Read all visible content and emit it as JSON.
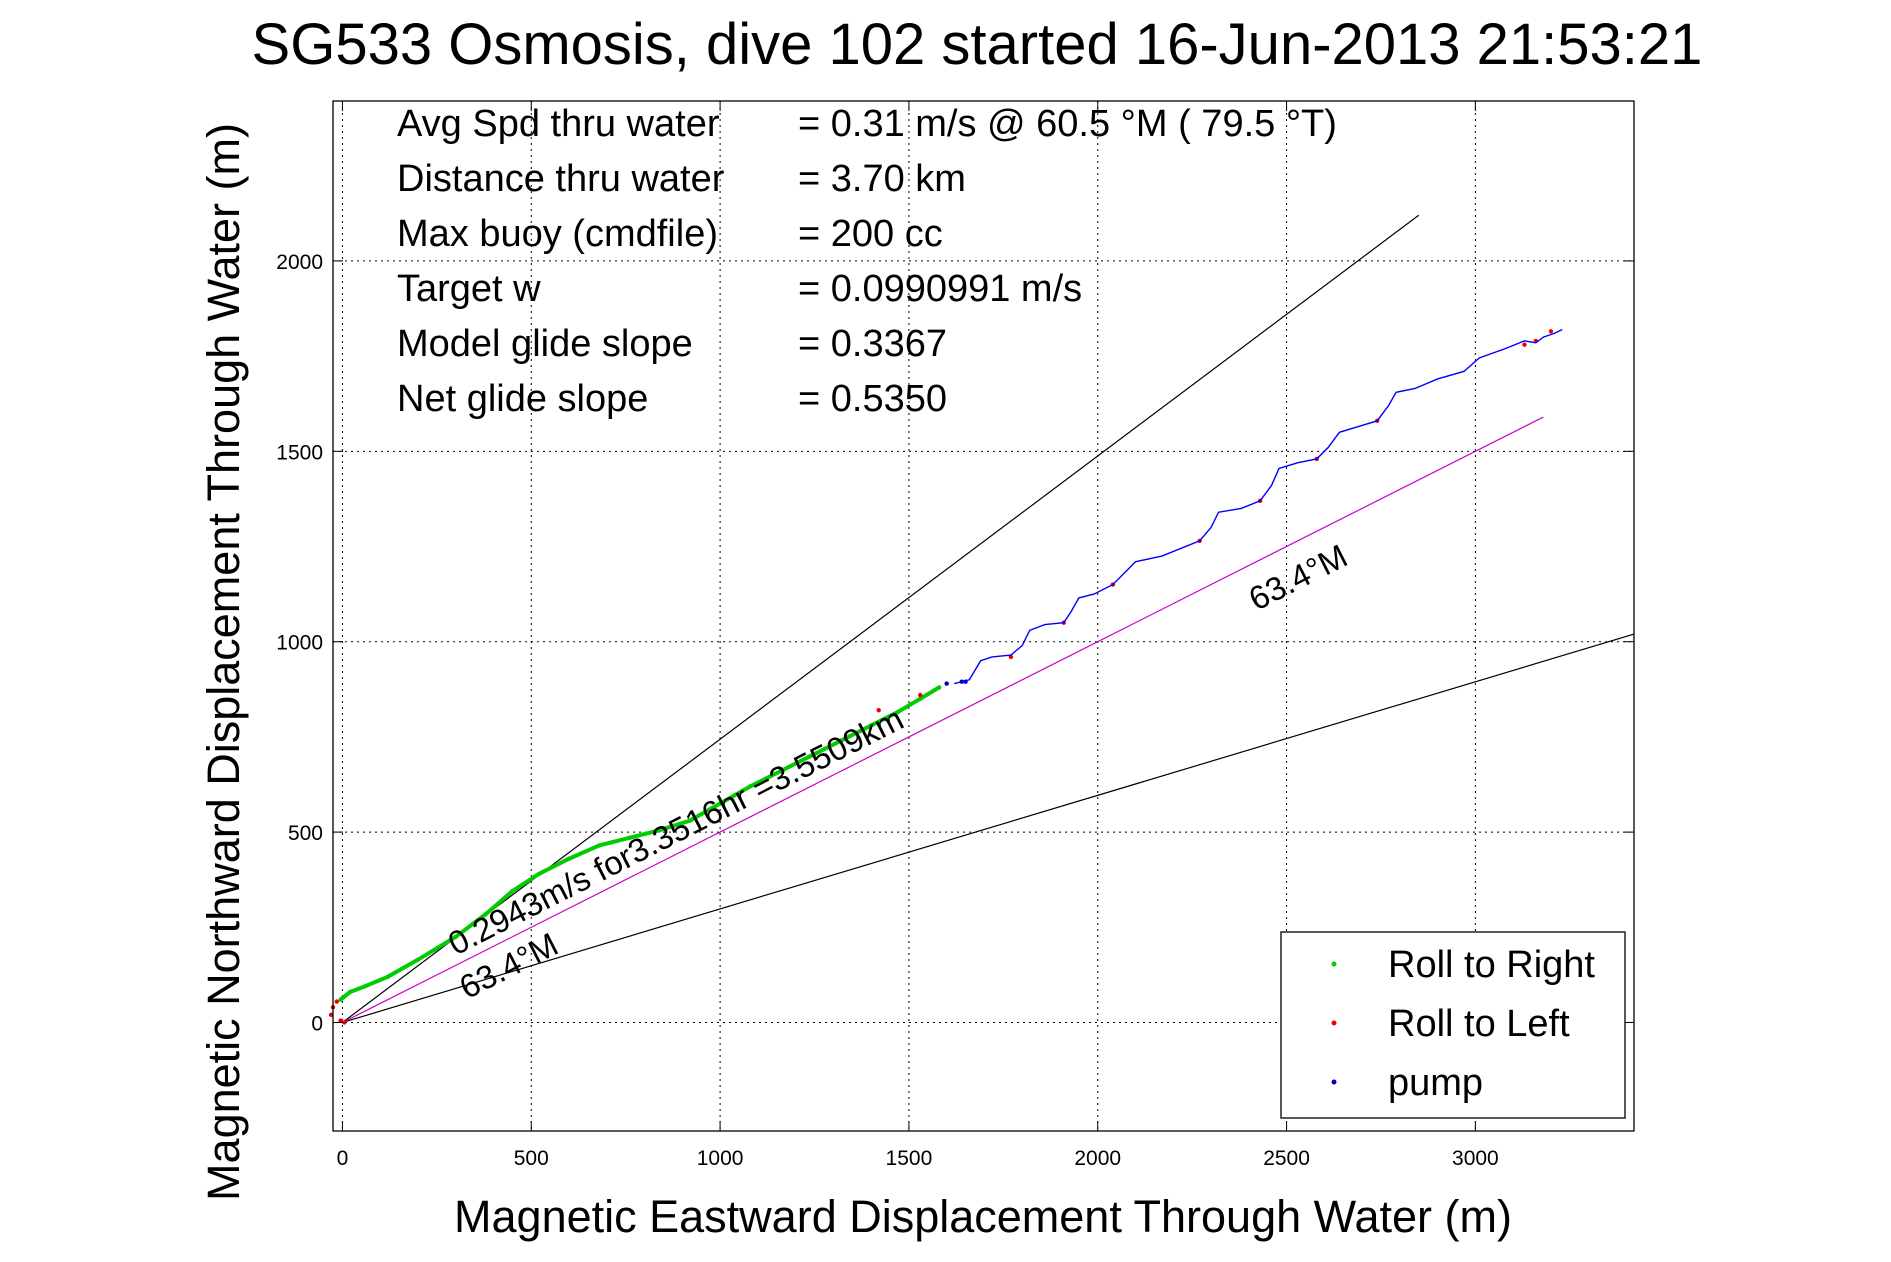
{
  "chart_data": {
    "type": "line",
    "title": "SG533 Osmosis, dive 102 started 16-Jun-2013 21:53:21",
    "xlabel": "Magnetic Eastward Displacement Through Water (m)",
    "ylabel": "Magnetic Northward Displacement Through Water (m)",
    "xlim": [
      -25,
      3420
    ],
    "ylim": [
      -285,
      2420
    ],
    "xticks": [
      0,
      500,
      1000,
      1500,
      2000,
      2500,
      3000
    ],
    "yticks": [
      0,
      500,
      1000,
      1500,
      2000
    ],
    "grid": true,
    "legend_position": "bottom-right",
    "info_lines": [
      {
        "label": "Avg Spd thru water",
        "value": "=  0.31 m/s @  60.5 °M ( 79.5 °T)"
      },
      {
        "label": "Distance thru water",
        "value": "=  3.70 km"
      },
      {
        "label": "Max buoy (cmdfile)",
        "value": "= 200 cc"
      },
      {
        "label": "Target w",
        "value": "= 0.0990991 m/s"
      },
      {
        "label": "Model glide slope",
        "value": "= 0.3367"
      },
      {
        "label": "Net glide slope",
        "value": "= 0.5350"
      }
    ],
    "reference_lines": [
      {
        "x": [
          0,
          2850
        ],
        "y": [
          0,
          2120
        ],
        "color": "#000000"
      },
      {
        "x": [
          0,
          3420
        ],
        "y": [
          0,
          1020
        ],
        "color": "#000000"
      },
      {
        "x": [
          0,
          3180
        ],
        "y": [
          0,
          1590
        ],
        "color": "#cc00cc"
      }
    ],
    "annotations": [
      {
        "text": "63.4°M",
        "x": 2420,
        "y": 1080,
        "rotate": -27
      },
      {
        "text": "63.4°M",
        "x": 330,
        "y": 60,
        "rotate": -27
      },
      {
        "text": "0.2943m/s for3.3516hr =3.5509km",
        "x": 300,
        "y": 175,
        "rotate": -27
      }
    ],
    "series": [
      {
        "name": "Roll to Right",
        "color": "#00cc00",
        "marker": "dot",
        "x": [
          -5,
          20,
          60,
          120,
          200,
          300,
          380,
          450,
          520,
          600,
          680,
          760,
          840,
          920,
          1000,
          1080,
          1160,
          1240,
          1320,
          1400,
          1470,
          1530,
          1580
        ],
        "y": [
          60,
          80,
          95,
          120,
          165,
          225,
          285,
          345,
          390,
          430,
          465,
          485,
          505,
          530,
          575,
          620,
          660,
          700,
          740,
          780,
          815,
          850,
          880
        ]
      },
      {
        "name": "Roll to Left",
        "color": "#ee0000",
        "marker": "dot",
        "x": [
          -30,
          -25,
          -15,
          -5,
          5,
          1420,
          1530,
          1770,
          1910,
          2040,
          2270,
          2430,
          2580,
          2740,
          3130,
          3160,
          3200
        ],
        "y": [
          20,
          40,
          55,
          5,
          0,
          820,
          860,
          960,
          1050,
          1150,
          1265,
          1370,
          1480,
          1580,
          1780,
          1790,
          1815
        ]
      },
      {
        "name": "pump",
        "color": "#0000aa",
        "marker": "dot",
        "x": [
          1600,
          1640,
          1650
        ],
        "y": [
          890,
          895,
          895
        ]
      },
      {
        "name": "",
        "color": "#0000ff",
        "marker": "line",
        "x": [
          1620,
          1660,
          1690,
          1720,
          1770,
          1800,
          1820,
          1860,
          1910,
          1930,
          1950,
          1990,
          2040,
          2080,
          2100,
          2170,
          2270,
          2300,
          2320,
          2380,
          2430,
          2460,
          2480,
          2530,
          2580,
          2610,
          2640,
          2690,
          2740,
          2770,
          2790,
          2840,
          2900,
          2970,
          3010,
          3080,
          3130,
          3160,
          3180,
          3210,
          3230
        ],
        "y": [
          890,
          900,
          950,
          960,
          965,
          990,
          1030,
          1045,
          1050,
          1080,
          1115,
          1125,
          1150,
          1190,
          1210,
          1225,
          1265,
          1300,
          1340,
          1350,
          1370,
          1410,
          1455,
          1470,
          1480,
          1510,
          1550,
          1565,
          1580,
          1620,
          1655,
          1665,
          1690,
          1710,
          1745,
          1770,
          1790,
          1785,
          1800,
          1810,
          1820
        ]
      }
    ]
  }
}
